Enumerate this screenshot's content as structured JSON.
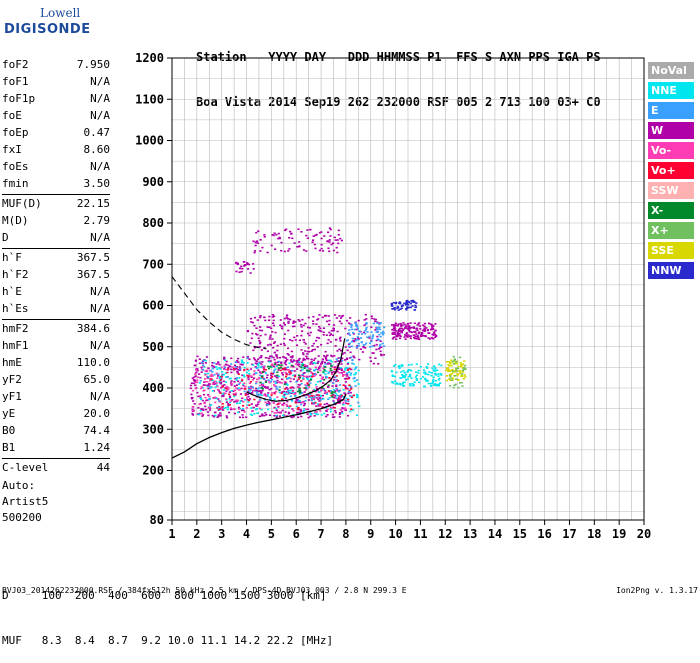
{
  "logo": {
    "line1": "Lowell",
    "line2": "DIGISONDE"
  },
  "header": {
    "line1": "Station   YYYY DAY   DDD HHMMSS P1  FFS S AXN PPS IGA PS",
    "line2": "Boa Vista 2014 Sep19 262 232000 RSF 005 2 713 100 03+ C0"
  },
  "params": [
    {
      "label": "foF2",
      "value": "7.950"
    },
    {
      "label": "foF1",
      "value": "N/A"
    },
    {
      "label": "foF1p",
      "value": "N/A"
    },
    {
      "label": "foE",
      "value": "N/A"
    },
    {
      "label": "foEp",
      "value": "0.47"
    },
    {
      "label": "fxI",
      "value": "8.60"
    },
    {
      "label": "foEs",
      "value": "N/A"
    },
    {
      "label": "fmin",
      "value": "3.50"
    },
    {
      "label": "MUF(D)",
      "value": "22.15"
    },
    {
      "label": "M(D)",
      "value": "2.79"
    },
    {
      "label": "D",
      "value": "N/A"
    },
    {
      "label": "h`F",
      "value": "367.5"
    },
    {
      "label": "h`F2",
      "value": "367.5"
    },
    {
      "label": "h`E",
      "value": "N/A"
    },
    {
      "label": "h`Es",
      "value": "N/A"
    },
    {
      "label": "hmF2",
      "value": "384.6"
    },
    {
      "label": "hmF1",
      "value": "N/A"
    },
    {
      "label": "hmE",
      "value": "110.0"
    },
    {
      "label": "yF2",
      "value": "65.0"
    },
    {
      "label": "yF1",
      "value": "N/A"
    },
    {
      "label": "yE",
      "value": "20.0"
    },
    {
      "label": "B0",
      "value": "74.4"
    },
    {
      "label": "B1",
      "value": "1.24"
    },
    {
      "label": "C-level",
      "value": "44"
    }
  ],
  "auto": {
    "line1": "Auto:",
    "line2": "Artist5",
    "line3": "500200"
  },
  "legend": [
    {
      "label": "NoVal",
      "color": "#aaaaaa"
    },
    {
      "label": "NNE",
      "color": "#00e5ee"
    },
    {
      "label": "E",
      "color": "#3aa0ff"
    },
    {
      "label": "W",
      "color": "#b000a8"
    },
    {
      "label": "Vo-",
      "color": "#ff3cb4"
    },
    {
      "label": "Vo+",
      "color": "#ff0030"
    },
    {
      "label": "SSW",
      "color": "#ffb0b0"
    },
    {
      "label": "X-",
      "color": "#00882a"
    },
    {
      "label": "X+",
      "color": "#70c060"
    },
    {
      "label": "SSE",
      "color": "#d8d800"
    },
    {
      "label": "NNW",
      "color": "#2a2acc"
    }
  ],
  "dmuf": {
    "line1": "D     100  200  400  600  800 1000 1500 3000 [km]",
    "line2": "MUF   8.3  8.4  8.7  9.2 10.0 11.1 14.2 22.2 [MHz]"
  },
  "footer": {
    "left": "BVJ03_2014262232000.RSF / 384fx512h 50 kHz 2.5 km / DPS-4D BVJ03 003 / 2.8 N 299.3 E",
    "right": "Ion2Png v. 1.3.17"
  },
  "chart_data": {
    "type": "scatter",
    "xlim": [
      1,
      20
    ],
    "ylim": [
      80,
      1200
    ],
    "xticks": [
      1,
      2,
      3,
      4,
      5,
      6,
      7,
      8,
      9,
      10,
      11,
      12,
      13,
      14,
      15,
      16,
      17,
      18,
      19,
      20
    ],
    "yticks": [
      80,
      200,
      300,
      400,
      500,
      600,
      700,
      800,
      900,
      1000,
      1100,
      1200
    ],
    "grid": true,
    "legend_position": "right",
    "echo_clusters": [
      {
        "color": "#b000a8",
        "fmin": 1.7,
        "fmax": 8.2,
        "hmin": 330,
        "hmax": 480,
        "n": 650
      },
      {
        "color": "#00e5ee",
        "fmin": 2.0,
        "fmax": 8.5,
        "hmin": 335,
        "hmax": 470,
        "n": 260
      },
      {
        "color": "#ff3cb4",
        "fmin": 1.8,
        "fmax": 8.0,
        "hmin": 340,
        "hmax": 460,
        "n": 220
      },
      {
        "color": "#ff0030",
        "fmin": 2.5,
        "fmax": 8.3,
        "hmin": 350,
        "hmax": 450,
        "n": 90
      },
      {
        "color": "#3aa0ff",
        "fmin": 2.0,
        "fmax": 8.5,
        "hmin": 360,
        "hmax": 480,
        "n": 120
      },
      {
        "color": "#00882a",
        "fmin": 4.5,
        "fmax": 7.5,
        "hmin": 380,
        "hmax": 460,
        "n": 50
      },
      {
        "color": "#b000a8",
        "fmin": 4.0,
        "fmax": 9.5,
        "hmin": 460,
        "hmax": 580,
        "n": 320
      },
      {
        "color": "#3aa0ff",
        "fmin": 8.0,
        "fmax": 9.5,
        "hmin": 500,
        "hmax": 560,
        "n": 80
      },
      {
        "color": "#b000a8",
        "fmin": 9.8,
        "fmax": 11.6,
        "hmin": 520,
        "hmax": 560,
        "n": 170
      },
      {
        "color": "#2a2acc",
        "fmin": 9.8,
        "fmax": 10.8,
        "hmin": 590,
        "hmax": 615,
        "n": 60
      },
      {
        "color": "#00e5ee",
        "fmin": 9.8,
        "fmax": 11.8,
        "hmin": 405,
        "hmax": 460,
        "n": 130
      },
      {
        "color": "#d8d800",
        "fmin": 12.0,
        "fmax": 12.8,
        "hmin": 420,
        "hmax": 470,
        "n": 70
      },
      {
        "color": "#70c060",
        "fmin": 12.1,
        "fmax": 12.8,
        "hmin": 400,
        "hmax": 480,
        "n": 30
      },
      {
        "color": "#b000a8",
        "fmin": 4.2,
        "fmax": 7.8,
        "hmin": 730,
        "hmax": 790,
        "n": 90
      },
      {
        "color": "#b000a8",
        "fmin": 3.5,
        "fmax": 4.3,
        "hmin": 680,
        "hmax": 710,
        "n": 25
      }
    ],
    "profile_curve": [
      [
        1.0,
        230
      ],
      [
        1.5,
        245
      ],
      [
        2.0,
        265
      ],
      [
        2.5,
        280
      ],
      [
        3.0,
        292
      ],
      [
        3.5,
        302
      ],
      [
        4.0,
        310
      ],
      [
        4.5,
        317
      ],
      [
        5.0,
        323
      ],
      [
        5.5,
        329
      ],
      [
        6.0,
        335
      ],
      [
        6.5,
        342
      ],
      [
        7.0,
        350
      ],
      [
        7.5,
        360
      ],
      [
        7.9,
        372
      ],
      [
        8.0,
        385
      ]
    ],
    "trace_curve": [
      [
        4.0,
        390
      ],
      [
        4.4,
        380
      ],
      [
        4.8,
        372
      ],
      [
        5.2,
        368
      ],
      [
        5.6,
        370
      ],
      [
        6.0,
        376
      ],
      [
        6.4,
        384
      ],
      [
        6.8,
        394
      ],
      [
        7.1,
        405
      ],
      [
        7.4,
        420
      ],
      [
        7.6,
        440
      ],
      [
        7.8,
        470
      ],
      [
        7.95,
        520
      ]
    ],
    "dashed_curve": [
      [
        1.0,
        670
      ],
      [
        1.5,
        630
      ],
      [
        2.0,
        590
      ],
      [
        2.5,
        560
      ],
      [
        3.0,
        535
      ],
      [
        3.5,
        518
      ],
      [
        4.0,
        505
      ],
      [
        4.5,
        498
      ],
      [
        4.8,
        495
      ]
    ]
  }
}
